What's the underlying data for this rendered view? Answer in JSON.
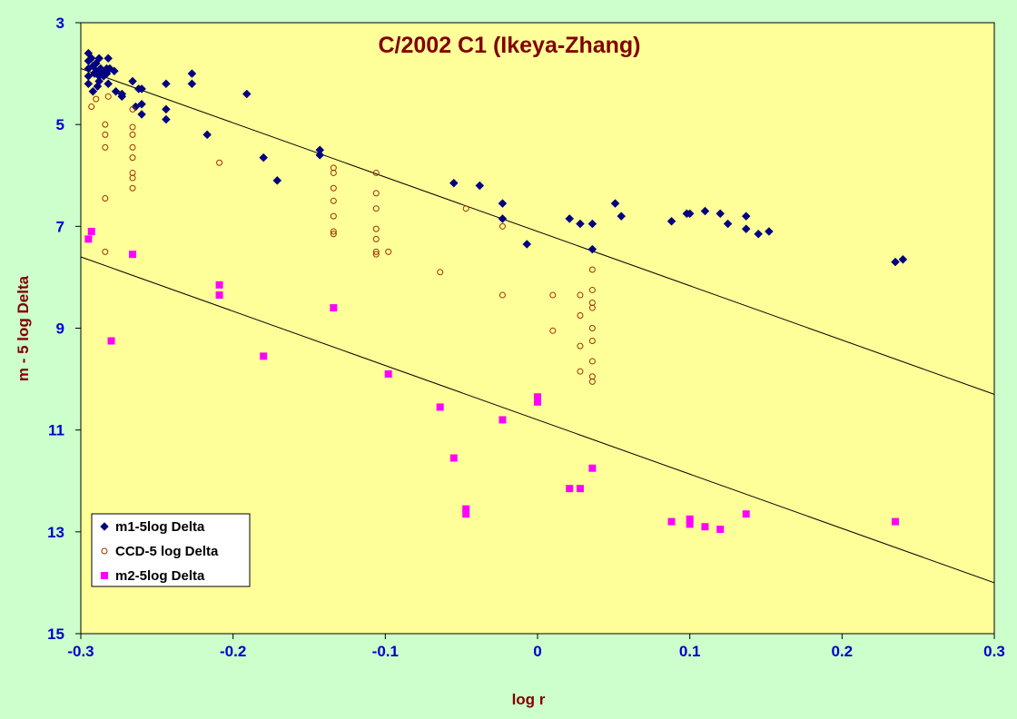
{
  "chart_data": {
    "type": "scatter",
    "title": "C/2002 C1 (Ikeya-Zhang)",
    "xlabel": "log r",
    "ylabel": "m - 5 log Delta",
    "xlim": [
      -0.3,
      0.3
    ],
    "ylim": [
      3,
      15
    ],
    "y_inverted": true,
    "x_ticks": [
      "-0.3",
      "-0.2",
      "-0.1",
      "0",
      "0.1",
      "0.2",
      "0.3"
    ],
    "y_ticks": [
      "3",
      "5",
      "7",
      "9",
      "11",
      "13",
      "15"
    ],
    "grid": false,
    "legend_position": "bottom-left",
    "plot_background": "#ffff99",
    "series": [
      {
        "name": "m1-5log Delta",
        "marker": "diamond",
        "color": "#000080",
        "points": [
          [
            -0.295,
            3.6
          ],
          [
            -0.295,
            3.75
          ],
          [
            -0.295,
            3.9
          ],
          [
            -0.295,
            4.05
          ],
          [
            -0.295,
            4.2
          ],
          [
            -0.293,
            3.7
          ],
          [
            -0.292,
            3.85
          ],
          [
            -0.292,
            4.35
          ],
          [
            -0.291,
            4.0
          ],
          [
            -0.29,
            3.8
          ],
          [
            -0.29,
            3.95
          ],
          [
            -0.289,
            4.25
          ],
          [
            -0.288,
            3.7
          ],
          [
            -0.288,
            4.05
          ],
          [
            -0.288,
            4.15
          ],
          [
            -0.287,
            3.9
          ],
          [
            -0.286,
            4.0
          ],
          [
            -0.285,
            4.05
          ],
          [
            -0.284,
            3.95
          ],
          [
            -0.283,
            3.9
          ],
          [
            -0.283,
            4.0
          ],
          [
            -0.282,
            4.2
          ],
          [
            -0.282,
            3.7
          ],
          [
            -0.281,
            3.9
          ],
          [
            -0.278,
            3.95
          ],
          [
            -0.277,
            4.35
          ],
          [
            -0.273,
            4.45
          ],
          [
            -0.273,
            4.4
          ],
          [
            -0.266,
            4.15
          ],
          [
            -0.264,
            4.65
          ],
          [
            -0.262,
            4.3
          ],
          [
            -0.26,
            4.3
          ],
          [
            -0.26,
            4.8
          ],
          [
            -0.26,
            4.6
          ],
          [
            -0.244,
            4.2
          ],
          [
            -0.244,
            4.7
          ],
          [
            -0.244,
            4.9
          ],
          [
            -0.227,
            4.0
          ],
          [
            -0.227,
            4.2
          ],
          [
            -0.217,
            5.2
          ],
          [
            -0.191,
            4.4
          ],
          [
            -0.18,
            5.65
          ],
          [
            -0.171,
            6.1
          ],
          [
            -0.143,
            5.5
          ],
          [
            -0.143,
            5.6
          ],
          [
            -0.055,
            6.15
          ],
          [
            -0.038,
            6.2
          ],
          [
            -0.023,
            6.55
          ],
          [
            -0.023,
            6.85
          ],
          [
            -0.007,
            7.35
          ],
          [
            0.021,
            6.85
          ],
          [
            0.028,
            6.95
          ],
          [
            0.036,
            6.95
          ],
          [
            0.036,
            7.45
          ],
          [
            0.051,
            6.55
          ],
          [
            0.055,
            6.8
          ],
          [
            0.088,
            6.9
          ],
          [
            0.098,
            6.75
          ],
          [
            0.1,
            6.75
          ],
          [
            0.11,
            6.7
          ],
          [
            0.12,
            6.75
          ],
          [
            0.125,
            6.95
          ],
          [
            0.137,
            6.8
          ],
          [
            0.137,
            7.05
          ],
          [
            0.145,
            7.15
          ],
          [
            0.152,
            7.1
          ],
          [
            0.235,
            7.7
          ],
          [
            0.24,
            7.65
          ]
        ]
      },
      {
        "name": "CCD-5 log Delta",
        "marker": "circle",
        "color": "#993300",
        "points": [
          [
            -0.293,
            4.65
          ],
          [
            -0.29,
            4.5
          ],
          [
            -0.284,
            5.0
          ],
          [
            -0.284,
            5.2
          ],
          [
            -0.284,
            5.45
          ],
          [
            -0.284,
            6.45
          ],
          [
            -0.284,
            7.5
          ],
          [
            -0.282,
            4.45
          ],
          [
            -0.266,
            4.7
          ],
          [
            -0.266,
            5.05
          ],
          [
            -0.266,
            5.2
          ],
          [
            -0.266,
            5.45
          ],
          [
            -0.266,
            5.65
          ],
          [
            -0.266,
            5.95
          ],
          [
            -0.266,
            6.05
          ],
          [
            -0.266,
            6.25
          ],
          [
            -0.209,
            5.75
          ],
          [
            -0.134,
            5.85
          ],
          [
            -0.134,
            5.95
          ],
          [
            -0.134,
            6.25
          ],
          [
            -0.134,
            6.5
          ],
          [
            -0.134,
            6.8
          ],
          [
            -0.134,
            7.1
          ],
          [
            -0.134,
            7.15
          ],
          [
            -0.106,
            5.95
          ],
          [
            -0.106,
            6.35
          ],
          [
            -0.106,
            6.65
          ],
          [
            -0.106,
            7.05
          ],
          [
            -0.106,
            7.25
          ],
          [
            -0.106,
            7.55
          ],
          [
            -0.106,
            7.5
          ],
          [
            -0.098,
            7.5
          ],
          [
            -0.064,
            7.9
          ],
          [
            -0.047,
            6.65
          ],
          [
            -0.023,
            7.0
          ],
          [
            -0.023,
            8.35
          ],
          [
            0.01,
            8.35
          ],
          [
            0.01,
            9.05
          ],
          [
            0.028,
            8.35
          ],
          [
            0.028,
            8.75
          ],
          [
            0.028,
            9.35
          ],
          [
            0.028,
            9.85
          ],
          [
            0.036,
            7.85
          ],
          [
            0.036,
            8.25
          ],
          [
            0.036,
            8.5
          ],
          [
            0.036,
            8.6
          ],
          [
            0.036,
            9.0
          ],
          [
            0.036,
            9.25
          ],
          [
            0.036,
            9.65
          ],
          [
            0.036,
            9.95
          ],
          [
            0.036,
            10.05
          ]
        ]
      },
      {
        "name": "m2-5log Delta",
        "marker": "square",
        "color": "#ff00ff",
        "points": [
          [
            -0.295,
            7.25
          ],
          [
            -0.293,
            7.1
          ],
          [
            -0.28,
            9.25
          ],
          [
            -0.266,
            7.55
          ],
          [
            -0.209,
            8.15
          ],
          [
            -0.209,
            8.35
          ],
          [
            -0.134,
            8.6
          ],
          [
            -0.18,
            9.55
          ],
          [
            -0.098,
            9.9
          ],
          [
            -0.064,
            10.55
          ],
          [
            -0.055,
            11.55
          ],
          [
            -0.047,
            12.55
          ],
          [
            -0.047,
            12.65
          ],
          [
            -0.023,
            10.8
          ],
          [
            0.0,
            10.35
          ],
          [
            0.0,
            10.45
          ],
          [
            0.021,
            12.15
          ],
          [
            0.028,
            12.15
          ],
          [
            0.036,
            11.75
          ],
          [
            0.088,
            12.8
          ],
          [
            0.1,
            12.75
          ],
          [
            0.1,
            12.85
          ],
          [
            0.11,
            12.9
          ],
          [
            0.12,
            12.95
          ],
          [
            0.137,
            12.65
          ],
          [
            0.235,
            12.8
          ]
        ]
      }
    ],
    "trend_lines": [
      {
        "x": [
          -0.3,
          0.3
        ],
        "y": [
          3.9,
          10.3
        ]
      },
      {
        "x": [
          -0.3,
          0.3
        ],
        "y": [
          7.6,
          14.0
        ]
      }
    ]
  }
}
